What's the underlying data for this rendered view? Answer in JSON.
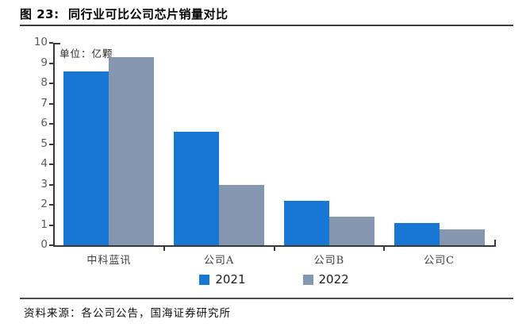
{
  "figure": {
    "title": "图 23:  同行业可比公司芯片销量对比",
    "source": "资料来源：各公司公告，国海证券研究所"
  },
  "chart_data": {
    "type": "bar",
    "title": "同行业可比公司芯片销量对比",
    "unit_label": "单位：亿颗",
    "categories": [
      "中科蓝讯",
      "公司A",
      "公司B",
      "公司C"
    ],
    "series": [
      {
        "name": "2021",
        "color": "#1877D3",
        "values": [
          8.6,
          5.6,
          2.2,
          1.1
        ]
      },
      {
        "name": "2022",
        "color": "#8496B0",
        "values": [
          9.3,
          3.0,
          1.4,
          0.8
        ]
      }
    ],
    "ylim": [
      0,
      10
    ],
    "yticks": [
      0,
      1,
      2,
      3,
      4,
      5,
      6,
      7,
      8,
      9,
      10
    ],
    "xlabel": "",
    "ylabel": "",
    "grid": false,
    "legend_position": "bottom-center"
  },
  "colors": {
    "bar_2021": "#1877D3",
    "bar_2022": "#8496B0",
    "axis": "#383838",
    "tick_label": "#595959",
    "rule": "#3d3d3d"
  }
}
